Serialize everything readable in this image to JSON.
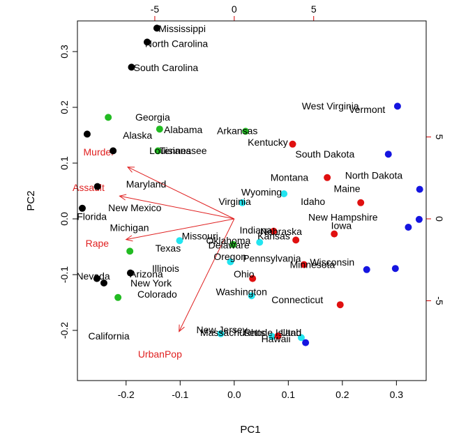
{
  "chart_data": {
    "type": "scatter",
    "title": "",
    "xlabel": "PC1",
    "ylabel": "PC2",
    "xlim": [
      -0.29,
      0.355
    ],
    "ylim": [
      -0.29,
      0.355
    ],
    "xticks": [
      -0.2,
      -0.1,
      0.0,
      0.1,
      0.2,
      0.3
    ],
    "yticks": [
      -0.2,
      -0.1,
      0.0,
      0.1,
      0.2,
      0.3
    ],
    "xtick_labels": [
      "-0.2",
      "-0.1",
      "0.0",
      "0.1",
      "0.2",
      "0.3"
    ],
    "ytick_labels": [
      "-0.2",
      "-0.1",
      "0.0",
      "0.1",
      "0.2",
      "0.3"
    ],
    "top_axis": {
      "lim": [
        -9.87,
        12.08
      ],
      "ticks": [
        -5,
        0,
        5
      ],
      "tick_labels": [
        "-5",
        "0",
        "5"
      ],
      "color": "#d40000"
    },
    "right_axis": {
      "lim": [
        -9.87,
        12.08
      ],
      "ticks": [
        -5,
        0,
        5
      ],
      "tick_labels": [
        "-5",
        "0",
        "5"
      ],
      "color": "#d40000"
    },
    "grid": false,
    "colors": {
      "black": "#000000",
      "green": "#22bb22",
      "cyan": "#22e5f0",
      "red": "#e01010",
      "blue": "#1515e0",
      "arrow": "#e02020"
    },
    "points": [
      {
        "x": -0.143,
        "y": 0.342,
        "color": "black"
      },
      {
        "x": -0.161,
        "y": 0.317,
        "color": "black"
      },
      {
        "x": -0.19,
        "y": 0.272,
        "color": "black"
      },
      {
        "x": -0.272,
        "y": 0.152,
        "color": "black"
      },
      {
        "x": -0.224,
        "y": 0.122,
        "color": "black"
      },
      {
        "x": -0.253,
        "y": 0.058,
        "color": "black"
      },
      {
        "x": -0.281,
        "y": 0.019,
        "color": "black"
      },
      {
        "x": -0.192,
        "y": -0.097,
        "color": "black"
      },
      {
        "x": -0.254,
        "y": -0.107,
        "color": "black"
      },
      {
        "x": -0.241,
        "y": -0.115,
        "color": "black"
      },
      {
        "x": -0.233,
        "y": 0.182,
        "color": "green"
      },
      {
        "x": -0.138,
        "y": 0.161,
        "color": "green"
      },
      {
        "x": -0.141,
        "y": 0.122,
        "color": "green"
      },
      {
        "x": 0.021,
        "y": 0.157,
        "color": "green"
      },
      {
        "x": -0.193,
        "y": -0.058,
        "color": "green"
      },
      {
        "x": -0.215,
        "y": -0.141,
        "color": "green"
      },
      {
        "x": -0.002,
        "y": -0.046,
        "color": "green"
      },
      {
        "x": 0.015,
        "y": 0.029,
        "color": "cyan"
      },
      {
        "x": 0.092,
        "y": 0.045,
        "color": "cyan"
      },
      {
        "x": -0.101,
        "y": -0.039,
        "color": "cyan"
      },
      {
        "x": 0.047,
        "y": -0.042,
        "color": "cyan"
      },
      {
        "x": -0.007,
        "y": -0.077,
        "color": "cyan"
      },
      {
        "x": 0.032,
        "y": -0.138,
        "color": "cyan"
      },
      {
        "x": -0.025,
        "y": -0.206,
        "color": "cyan"
      },
      {
        "x": 0.07,
        "y": -0.211,
        "color": "cyan"
      },
      {
        "x": 0.124,
        "y": -0.213,
        "color": "cyan"
      },
      {
        "x": 0.108,
        "y": 0.134,
        "color": "red"
      },
      {
        "x": 0.172,
        "y": 0.074,
        "color": "red"
      },
      {
        "x": 0.234,
        "y": 0.029,
        "color": "red"
      },
      {
        "x": 0.185,
        "y": -0.027,
        "color": "red"
      },
      {
        "x": 0.114,
        "y": -0.038,
        "color": "red"
      },
      {
        "x": 0.073,
        "y": -0.022,
        "color": "red"
      },
      {
        "x": 0.129,
        "y": -0.082,
        "color": "red"
      },
      {
        "x": 0.034,
        "y": -0.107,
        "color": "red"
      },
      {
        "x": 0.196,
        "y": -0.154,
        "color": "red"
      },
      {
        "x": 0.081,
        "y": -0.21,
        "color": "red"
      },
      {
        "x": 0.302,
        "y": 0.202,
        "color": "blue"
      },
      {
        "x": 0.285,
        "y": 0.116,
        "color": "blue"
      },
      {
        "x": 0.343,
        "y": 0.053,
        "color": "blue"
      },
      {
        "x": 0.342,
        "y": -0.001,
        "color": "blue"
      },
      {
        "x": 0.322,
        "y": -0.015,
        "color": "blue"
      },
      {
        "x": 0.298,
        "y": -0.089,
        "color": "blue"
      },
      {
        "x": 0.245,
        "y": -0.091,
        "color": "blue"
      },
      {
        "x": 0.132,
        "y": -0.222,
        "color": "blue"
      }
    ],
    "labels": [
      {
        "text": "Mississippi",
        "x": -0.14,
        "y": 0.335
      },
      {
        "text": "North Carolina",
        "x": -0.165,
        "y": 0.308
      },
      {
        "text": "South Carolina",
        "x": -0.186,
        "y": 0.265
      },
      {
        "text": "Georgia",
        "x": -0.183,
        "y": 0.176
      },
      {
        "text": "Alabama",
        "x": -0.13,
        "y": 0.154
      },
      {
        "text": "Alaska",
        "x": -0.206,
        "y": 0.144
      },
      {
        "text": "Louisiana",
        "x": -0.157,
        "y": 0.116
      },
      {
        "text": "Tennessee",
        "x": -0.138,
        "y": 0.116
      },
      {
        "text": "Arkansas",
        "x": -0.032,
        "y": 0.152
      },
      {
        "text": "Kentucky",
        "x": 0.025,
        "y": 0.131
      },
      {
        "text": "West Virginia",
        "x": 0.125,
        "y": 0.196
      },
      {
        "text": "Vermont",
        "x": 0.212,
        "y": 0.19
      },
      {
        "text": "South Dakota",
        "x": 0.113,
        "y": 0.11
      },
      {
        "text": "North Dakota",
        "x": 0.205,
        "y": 0.072
      },
      {
        "text": "Montana",
        "x": 0.067,
        "y": 0.068
      },
      {
        "text": "Maine",
        "x": 0.184,
        "y": 0.048
      },
      {
        "text": "Idaho",
        "x": 0.123,
        "y": 0.025
      },
      {
        "text": "Wyoming",
        "x": 0.013,
        "y": 0.042
      },
      {
        "text": "Virginia",
        "x": -0.029,
        "y": 0.025
      },
      {
        "text": "Maryland",
        "x": -0.2,
        "y": 0.056
      },
      {
        "text": "New Mexico",
        "x": -0.233,
        "y": 0.014
      },
      {
        "text": "Florida",
        "x": -0.291,
        "y": -0.002
      },
      {
        "text": "New Hampshire",
        "x": 0.137,
        "y": -0.003
      },
      {
        "text": "Iowa",
        "x": 0.179,
        "y": -0.018
      },
      {
        "text": "Michigan",
        "x": -0.23,
        "y": -0.022
      },
      {
        "text": "Indiana",
        "x": 0.01,
        "y": -0.026
      },
      {
        "text": "Nebraska",
        "x": 0.048,
        "y": -0.029
      },
      {
        "text": "Missouri",
        "x": -0.097,
        "y": -0.037
      },
      {
        "text": "Kansas",
        "x": 0.043,
        "y": -0.037
      },
      {
        "text": "Oklahoma",
        "x": -0.052,
        "y": -0.045
      },
      {
        "text": "Delaware",
        "x": -0.048,
        "y": -0.053
      },
      {
        "text": "Texas",
        "x": -0.146,
        "y": -0.059
      },
      {
        "text": "Oregon",
        "x": -0.038,
        "y": -0.074
      },
      {
        "text": "Pennsylvania",
        "x": 0.016,
        "y": -0.077
      },
      {
        "text": "Wisconsin",
        "x": 0.14,
        "y": -0.084
      },
      {
        "text": "Minnesota",
        "x": 0.103,
        "y": -0.088
      },
      {
        "text": "Illinois",
        "x": -0.152,
        "y": -0.095
      },
      {
        "text": "Arizona",
        "x": -0.193,
        "y": -0.105
      },
      {
        "text": "Nevada",
        "x": -0.292,
        "y": -0.109
      },
      {
        "text": "Ohio",
        "x": -0.001,
        "y": -0.105
      },
      {
        "text": "New York",
        "x": -0.192,
        "y": -0.121
      },
      {
        "text": "Washington",
        "x": -0.034,
        "y": -0.137
      },
      {
        "text": "Colorado",
        "x": -0.179,
        "y": -0.141
      },
      {
        "text": "Connecticut",
        "x": 0.069,
        "y": -0.151
      },
      {
        "text": "New Jersey",
        "x": -0.07,
        "y": -0.205
      },
      {
        "text": "Massachusetts",
        "x": -0.063,
        "y": -0.21
      },
      {
        "text": "Rhode Island",
        "x": 0.018,
        "y": -0.21
      },
      {
        "text": "Utah",
        "x": 0.086,
        "y": -0.21
      },
      {
        "text": "Hawaii",
        "x": 0.05,
        "y": -0.221
      },
      {
        "text": "California",
        "x": -0.27,
        "y": -0.216
      }
    ],
    "arrows": [
      {
        "name": "Murder",
        "x": -0.197,
        "y": 0.093,
        "label_x": -0.279,
        "label_y": 0.114
      },
      {
        "name": "Assault",
        "x": -0.212,
        "y": 0.041,
        "label_x": -0.299,
        "label_y": 0.05
      },
      {
        "name": "Rape",
        "x": -0.2,
        "y": -0.037,
        "label_x": -0.275,
        "label_y": -0.05
      },
      {
        "name": "UrbanPop",
        "x": -0.102,
        "y": -0.202,
        "label_x": -0.178,
        "label_y": -0.249
      }
    ]
  }
}
